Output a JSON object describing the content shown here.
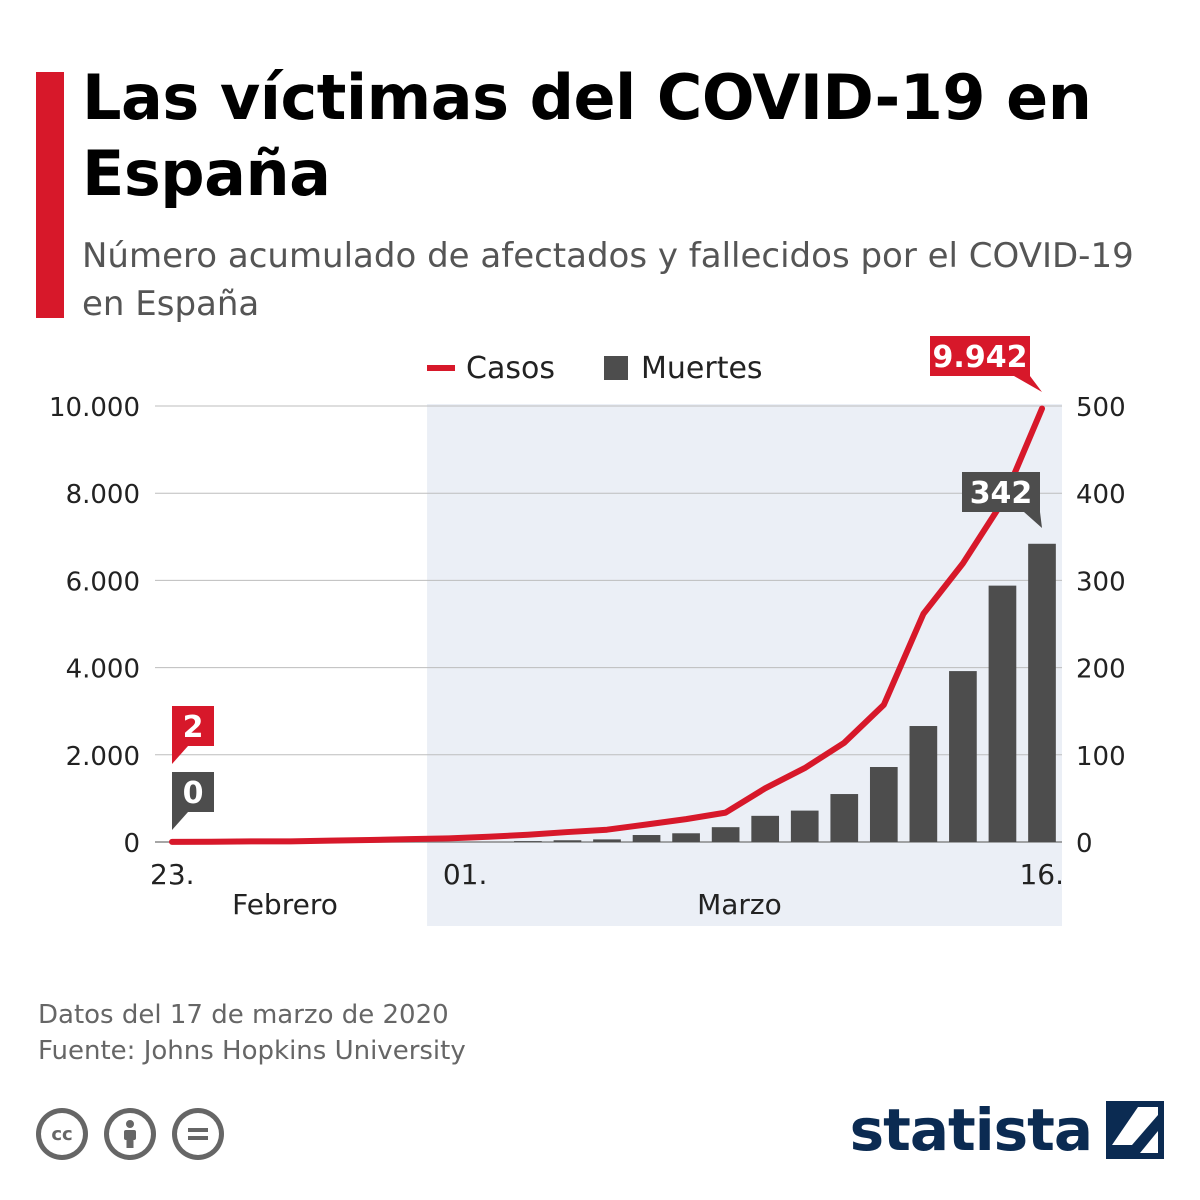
{
  "header": {
    "title": "Las víctimas del COVID-19 en España",
    "subtitle": "Número acumulado de afectados y fallecidos por el COVID-19 en España",
    "accent_color": "#d7182a"
  },
  "chart_data": {
    "type": "bar+line",
    "legend": {
      "placement": "top-center",
      "items": [
        {
          "name": "Casos",
          "color": "#d7182a",
          "shape": "line"
        },
        {
          "name": "Muertes",
          "color": "#4d4d4d",
          "shape": "square"
        }
      ]
    },
    "x": [
      "23.02",
      "24.02",
      "25.02",
      "26.02",
      "27.02",
      "28.02",
      "29.02",
      "01.03",
      "02.03",
      "03.03",
      "04.03",
      "05.03",
      "06.03",
      "07.03",
      "08.03",
      "09.03",
      "10.03",
      "11.03",
      "12.03",
      "13.03",
      "14.03",
      "15.03",
      "16.03"
    ],
    "x_tick_labels": [
      {
        "index": 0,
        "label": "23."
      },
      {
        "index": 7,
        "label": "01."
      },
      {
        "index": 22,
        "label": "16."
      }
    ],
    "x_group_labels": [
      {
        "label": "Febrero",
        "from": 0,
        "to": 6
      },
      {
        "label": "Marzo",
        "from": 7,
        "to": 22
      }
    ],
    "shaded_range": {
      "from": 7,
      "to": 22,
      "color": "#ebeff6"
    },
    "series": [
      {
        "name": "Casos",
        "type": "line",
        "axis": "left",
        "color": "#d7182a",
        "values": [
          2,
          6,
          13,
          15,
          32,
          45,
          66,
          84,
          120,
          165,
          228,
          282,
          401,
          525,
          674,
          1231,
          1695,
          2277,
          3146,
          5232,
          6391,
          7798,
          9942
        ]
      },
      {
        "name": "Muertes",
        "type": "bar",
        "axis": "right",
        "color": "#4d4d4d",
        "values": [
          0,
          0,
          0,
          0,
          0,
          0,
          0,
          0,
          0,
          1,
          2,
          3,
          8,
          10,
          17,
          30,
          36,
          55,
          86,
          133,
          196,
          294,
          342
        ]
      }
    ],
    "left_axis": {
      "min": 0,
      "max": 10000,
      "ticks": [
        0,
        2000,
        4000,
        6000,
        8000,
        10000
      ],
      "tick_labels": [
        "0",
        "2.000",
        "4.000",
        "6.000",
        "8.000",
        "10.000"
      ]
    },
    "right_axis": {
      "min": 0,
      "max": 500,
      "ticks": [
        0,
        100,
        200,
        300,
        400,
        500
      ],
      "tick_labels": [
        "0",
        "100",
        "200",
        "300",
        "400",
        "500"
      ]
    },
    "grid": true,
    "callouts": [
      {
        "label": "2",
        "series": "Casos",
        "index": 0,
        "color": "#d7182a"
      },
      {
        "label": "0",
        "series": "Muertes",
        "index": 0,
        "color": "#4d4d4d"
      },
      {
        "label": "9.942",
        "series": "Casos",
        "index": 22,
        "color": "#d7182a"
      },
      {
        "label": "342",
        "series": "Muertes",
        "index": 22,
        "color": "#4d4d4d"
      }
    ]
  },
  "footer": {
    "date_note": "Datos del 17 de marzo de 2020",
    "source": "Fuente: Johns Hopkins University",
    "license_icons": [
      "cc-icon",
      "attribution-icon",
      "no-derivatives-icon"
    ],
    "brand": "statista"
  }
}
